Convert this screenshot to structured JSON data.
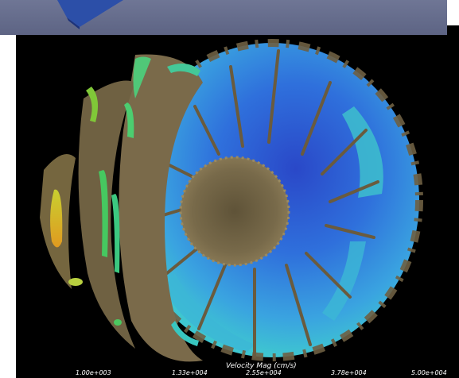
{
  "colorbar": {
    "title": "Velocity Mag (cm/s)",
    "ticks": [
      "1.00e+003",
      "1.33e+004",
      "2.55e+004",
      "3.78e+004",
      "5.00e+004"
    ],
    "colors": [
      "#f0d020",
      "#46d070",
      "#38c0c8",
      "#3a8ee0",
      "#2a4cd0"
    ]
  },
  "scene": {
    "background": "#000000",
    "debris_color": "#7a6a4a",
    "banner_color": "#676e8e",
    "cube_color": "#2e4ea8"
  }
}
